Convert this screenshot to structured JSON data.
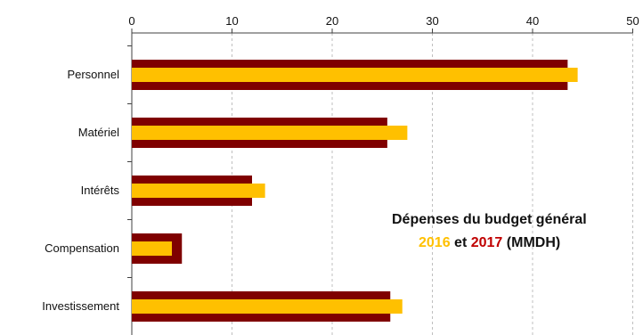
{
  "chart_data": {
    "type": "bar",
    "orientation": "horizontal",
    "categories": [
      "Personnel",
      "Matériel",
      "Intérêts",
      "Compensation",
      "Investissement"
    ],
    "series": [
      {
        "name": "2017",
        "color": "#7f0000",
        "values": [
          43.5,
          25.5,
          12.0,
          5.0,
          25.8
        ]
      },
      {
        "name": "2016",
        "color": "#ffc000",
        "values": [
          44.5,
          27.5,
          13.3,
          4.0,
          27.0
        ]
      }
    ],
    "x_ticks": [
      0,
      10,
      20,
      30,
      40,
      50
    ],
    "xlim": [
      0,
      50
    ],
    "grid": true,
    "title": {
      "line1": "Dépenses du budget général",
      "year1": "2016",
      "connector": "et",
      "year2": "2017",
      "unit": "(MMDH)"
    }
  }
}
